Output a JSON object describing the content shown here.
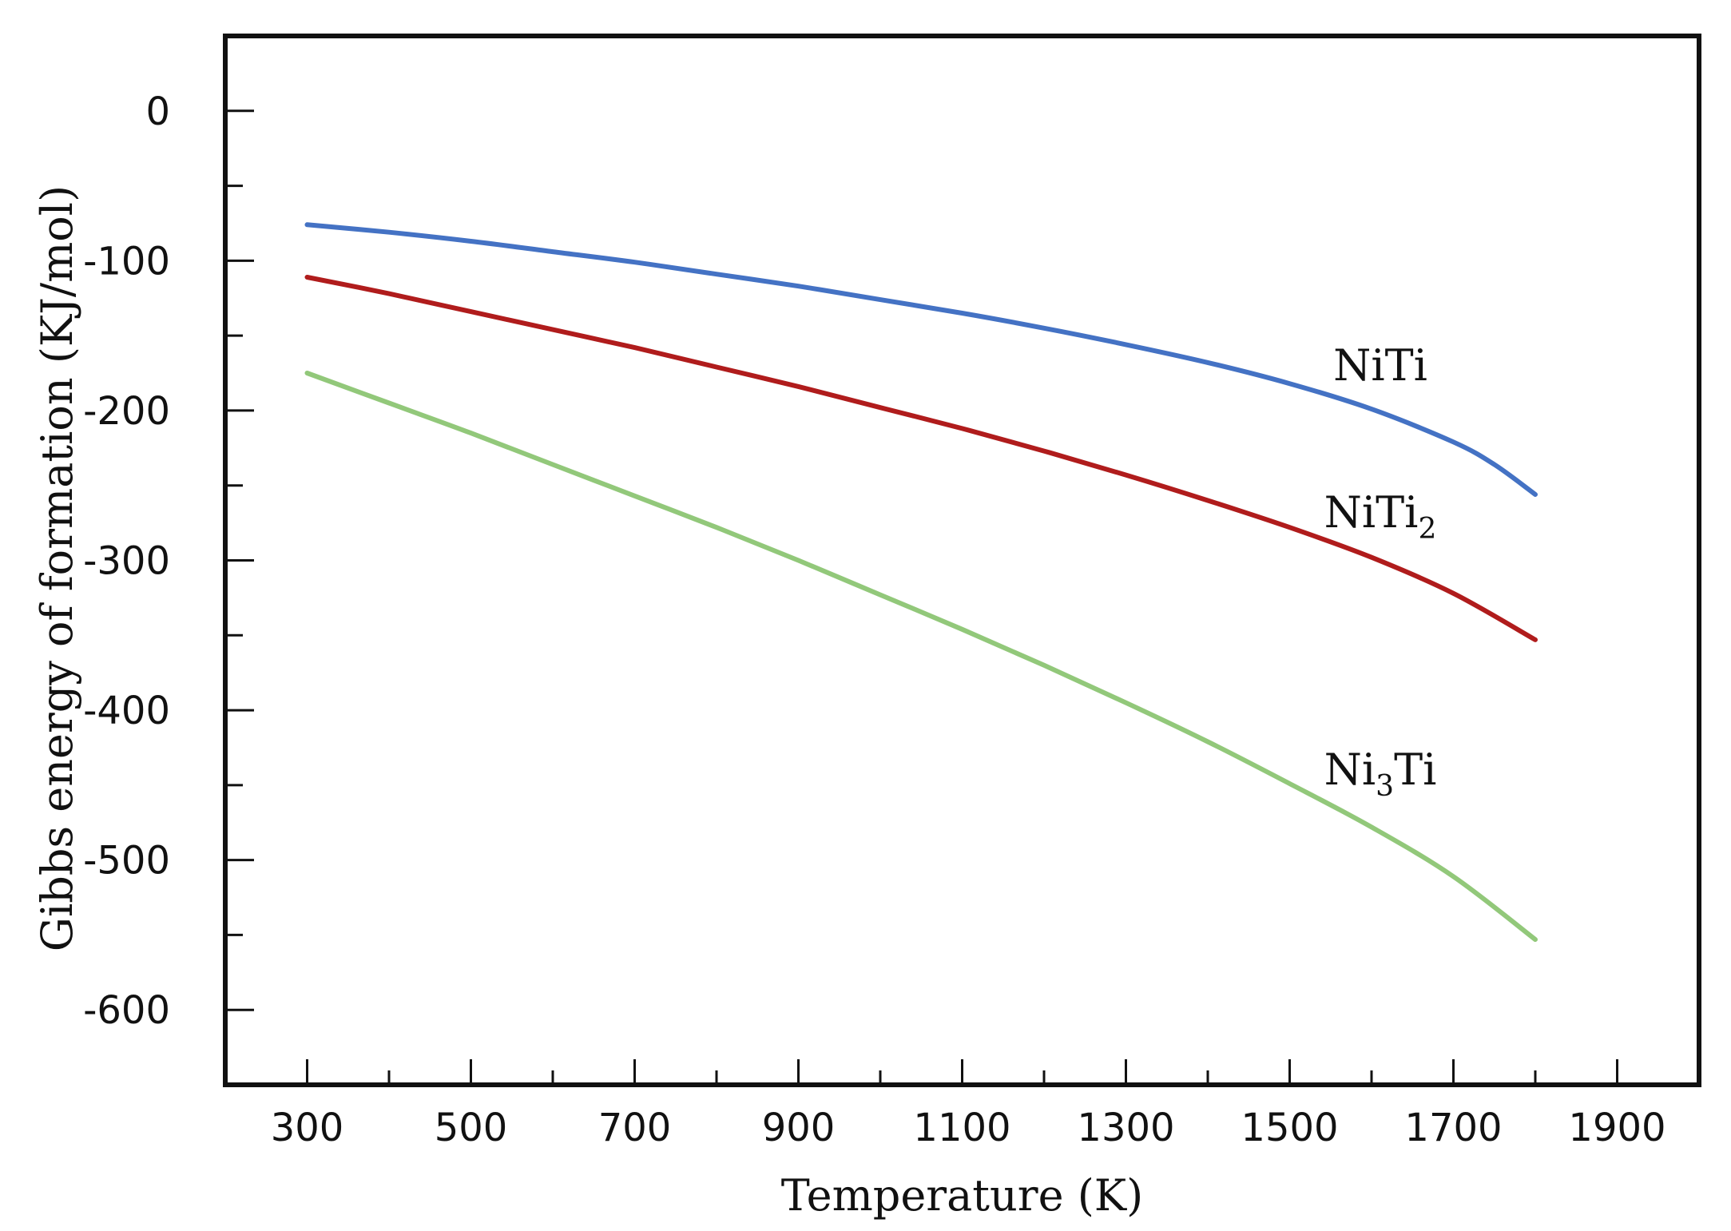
{
  "chart_data": {
    "type": "line",
    "title": "",
    "xlabel": "Temperature (K)",
    "ylabel": "Gibbs energy of formation (KJ/mol)",
    "xlim": [
      200,
      2000
    ],
    "ylim": [
      -650,
      50
    ],
    "xticks": [
      300,
      500,
      700,
      900,
      1100,
      1300,
      1500,
      1700,
      1900
    ],
    "xminor": [
      400,
      600,
      800,
      1000,
      1200,
      1400,
      1600,
      1800
    ],
    "yticks": [
      0,
      -100,
      -200,
      -300,
      -400,
      -500,
      -600
    ],
    "yminor": [
      -50,
      -150,
      -250,
      -350,
      -450,
      -550
    ],
    "grid": false,
    "series": [
      {
        "name": "NiTi",
        "label_base": "NiTi",
        "label_sub": "",
        "label_tail": "",
        "color": "#4472c4",
        "x": [
          300,
          400,
          500,
          600,
          700,
          800,
          900,
          1000,
          1100,
          1200,
          1300,
          1400,
          1500,
          1600,
          1700,
          1750,
          1800
        ],
        "y": [
          -76,
          -81,
          -87,
          -94,
          -101,
          -109,
          -117,
          -126,
          -135,
          -145,
          -156,
          -168,
          -182,
          -199,
          -221,
          -236,
          -256
        ]
      },
      {
        "name": "NiTi2",
        "label_base": "NiTi",
        "label_sub": "2",
        "label_tail": "",
        "color": "#b01c1c",
        "x": [
          300,
          400,
          500,
          600,
          700,
          800,
          900,
          1000,
          1100,
          1200,
          1300,
          1400,
          1500,
          1600,
          1700,
          1800
        ],
        "y": [
          -111,
          -122,
          -134,
          -146,
          -158,
          -171,
          -184,
          -198,
          -212,
          -227,
          -243,
          -260,
          -278,
          -298,
          -322,
          -353
        ]
      },
      {
        "name": "Ni3Ti",
        "label_base": "Ni",
        "label_sub": "3",
        "label_tail": "Ti",
        "color": "#92c87a",
        "x": [
          300,
          400,
          500,
          600,
          700,
          800,
          900,
          1000,
          1100,
          1200,
          1300,
          1400,
          1500,
          1600,
          1700,
          1800
        ],
        "y": [
          -175,
          -195,
          -215,
          -236,
          -257,
          -278,
          -300,
          -323,
          -346,
          -370,
          -395,
          -421,
          -449,
          -478,
          -511,
          -553
        ]
      }
    ]
  }
}
